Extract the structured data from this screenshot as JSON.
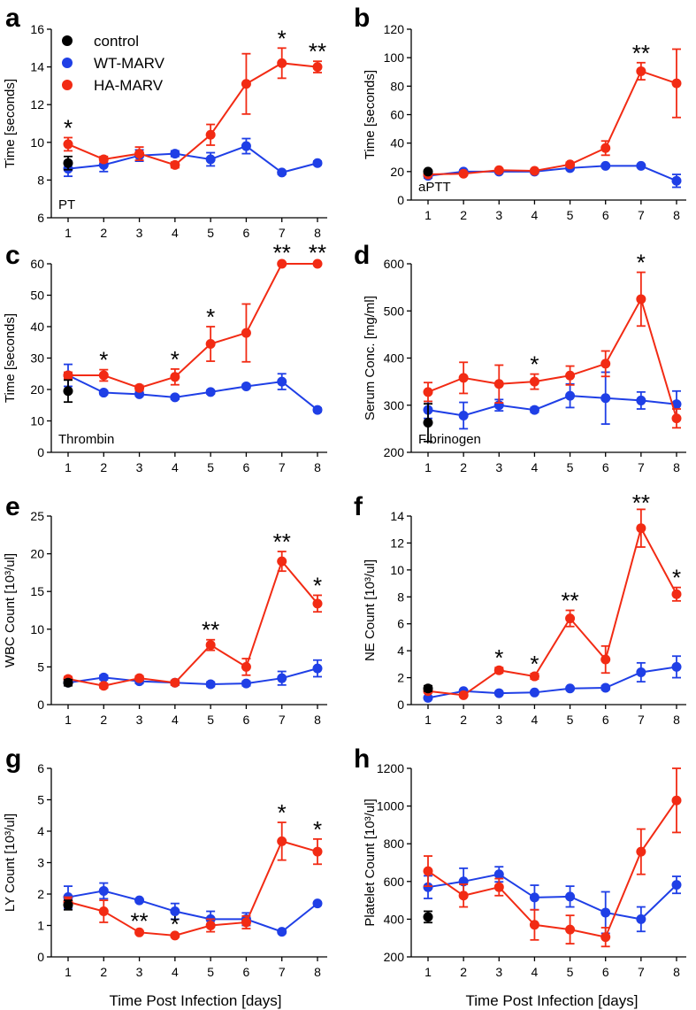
{
  "figure": {
    "xlabel_left": "Time Post Infection [days]",
    "xlabel_right": "Time Post Infection [days]"
  },
  "colors": {
    "control": "#000000",
    "wt": "#1f3fe6",
    "ha": "#f22b14"
  },
  "legend": {
    "control": "control",
    "wt": "WT-MARV",
    "ha": "HA-MARV"
  },
  "chart_data": [
    {
      "letter": "a",
      "type": "line",
      "ylabel": "Time [seconds]",
      "tag": "PT",
      "x": [
        1,
        2,
        3,
        4,
        5,
        6,
        7,
        8
      ],
      "ylim": [
        6,
        16
      ],
      "yticks": [
        6,
        8,
        10,
        12,
        14,
        16
      ],
      "control": {
        "value": 8.9,
        "err": 0.35
      },
      "series": [
        {
          "name": "WT-MARV",
          "values": [
            8.6,
            8.8,
            9.3,
            9.4,
            9.1,
            9.8,
            8.4,
            8.9
          ],
          "err": [
            0.4,
            0.35,
            0.3,
            0.15,
            0.35,
            0.4,
            0.1,
            0.1
          ]
        },
        {
          "name": "HA-MARV",
          "values": [
            9.9,
            9.1,
            9.4,
            8.8,
            10.4,
            13.1,
            14.2,
            14.0
          ],
          "err": [
            0.35,
            0.15,
            0.35,
            0.15,
            0.55,
            1.6,
            0.8,
            0.3
          ]
        }
      ],
      "annotations": [
        {
          "day": 1,
          "text": "*"
        },
        {
          "day": 7,
          "text": "*"
        },
        {
          "day": 8,
          "text": "**"
        }
      ]
    },
    {
      "letter": "b",
      "type": "line",
      "ylabel": "Time [seconds]",
      "tag": "aPTT",
      "x": [
        1,
        2,
        3,
        4,
        5,
        6,
        7,
        8
      ],
      "ylim": [
        0,
        120
      ],
      "yticks": [
        0,
        20,
        40,
        60,
        80,
        100,
        120
      ],
      "control": {
        "value": 20,
        "err": 1
      },
      "series": [
        {
          "name": "WT-MARV",
          "values": [
            17,
            20,
            20,
            20,
            22.5,
            24,
            24,
            13.5
          ],
          "err": [
            1.5,
            1,
            1,
            1,
            1,
            1,
            1,
            4.5
          ]
        },
        {
          "name": "HA-MARV",
          "values": [
            18,
            18.5,
            21,
            20.5,
            25,
            36.5,
            90.5,
            82
          ],
          "err": [
            1,
            1,
            1,
            1,
            1.5,
            5,
            6,
            24
          ]
        }
      ],
      "annotations": [
        {
          "day": 7,
          "text": "**"
        }
      ]
    },
    {
      "letter": "c",
      "type": "line",
      "ylabel": "Time [seconds]",
      "tag": "Thrombin",
      "x": [
        1,
        2,
        3,
        4,
        5,
        6,
        7,
        8
      ],
      "ylim": [
        0,
        60
      ],
      "yticks": [
        0,
        10,
        20,
        30,
        40,
        50,
        60
      ],
      "control": {
        "value": 19.5,
        "err": 3.5
      },
      "series": [
        {
          "name": "WT-MARV",
          "values": [
            24.5,
            19,
            18.5,
            17.5,
            19.2,
            21,
            22.5,
            13.5
          ],
          "err": [
            3.5,
            0.6,
            0.6,
            0.6,
            0.6,
            0.6,
            2.5,
            0.6
          ]
        },
        {
          "name": "HA-MARV",
          "values": [
            24.5,
            24.5,
            20.5,
            24,
            34.5,
            38,
            60,
            60
          ],
          "err": [
            1,
            1.8,
            0.8,
            2.5,
            5.5,
            9.2,
            0.4,
            0.4
          ]
        }
      ],
      "annotations": [
        {
          "day": 2,
          "text": "*"
        },
        {
          "day": 4,
          "text": "*"
        },
        {
          "day": 5,
          "text": "*"
        },
        {
          "day": 7,
          "text": "**"
        },
        {
          "day": 8,
          "text": "**"
        }
      ]
    },
    {
      "letter": "d",
      "type": "line",
      "ylabel": "Serum Conc. [mg/ml]",
      "tag": "Fibrinogen",
      "x": [
        1,
        2,
        3,
        4,
        5,
        6,
        7,
        8
      ],
      "ylim": [
        200,
        600
      ],
      "yticks": [
        200,
        300,
        400,
        500,
        600
      ],
      "control": {
        "value": 263,
        "err": 40
      },
      "series": [
        {
          "name": "WT-MARV",
          "values": [
            290,
            278,
            300,
            290,
            320,
            315,
            310,
            302
          ],
          "err": [
            18,
            28,
            12,
            5,
            25,
            55,
            18,
            28
          ]
        },
        {
          "name": "HA-MARV",
          "values": [
            328,
            358,
            345,
            350,
            363,
            388,
            525,
            272
          ],
          "err": [
            20,
            33,
            40,
            16,
            20,
            27,
            57,
            20
          ]
        }
      ],
      "annotations": [
        {
          "day": 4,
          "text": "*"
        },
        {
          "day": 7,
          "text": "*"
        }
      ]
    },
    {
      "letter": "e",
      "type": "line",
      "ylabel": "WBC Count [10³/ul]",
      "x": [
        1,
        2,
        3,
        4,
        5,
        6,
        7,
        8
      ],
      "ylim": [
        0,
        25
      ],
      "yticks": [
        0,
        5,
        10,
        15,
        20,
        25
      ],
      "control": {
        "value": 2.9,
        "err": 0.4
      },
      "series": [
        {
          "name": "WT-MARV",
          "values": [
            2.9,
            3.6,
            3.1,
            2.9,
            2.7,
            2.8,
            3.5,
            4.8
          ],
          "err": [
            0.3,
            0.3,
            0.3,
            0.3,
            0.3,
            0.3,
            0.9,
            1.1
          ]
        },
        {
          "name": "HA-MARV",
          "values": [
            3.4,
            2.5,
            3.5,
            2.9,
            7.9,
            5.0,
            19.0,
            13.4
          ],
          "err": [
            0.3,
            0.3,
            0.3,
            0.3,
            0.7,
            1.1,
            1.3,
            1.1
          ]
        }
      ],
      "annotations": [
        {
          "day": 5,
          "text": "**"
        },
        {
          "day": 7,
          "text": "**"
        },
        {
          "day": 8,
          "text": "*"
        }
      ]
    },
    {
      "letter": "f",
      "type": "line",
      "ylabel": "NE Count [10³/ul]",
      "x": [
        1,
        2,
        3,
        4,
        5,
        6,
        7,
        8
      ],
      "ylim": [
        0,
        14
      ],
      "yticks": [
        0,
        2,
        4,
        6,
        8,
        10,
        12,
        14
      ],
      "control": {
        "value": 1.2,
        "err": 0.2
      },
      "series": [
        {
          "name": "WT-MARV",
          "values": [
            0.5,
            1.0,
            0.85,
            0.9,
            1.2,
            1.25,
            2.4,
            2.8
          ],
          "err": [
            0.1,
            0.1,
            0.1,
            0.1,
            0.1,
            0.15,
            0.7,
            0.8
          ]
        },
        {
          "name": "HA-MARV",
          "values": [
            1.0,
            0.7,
            2.55,
            2.1,
            6.4,
            3.35,
            13.1,
            8.2
          ],
          "err": [
            0.1,
            0.1,
            0.2,
            0.2,
            0.6,
            1.0,
            1.4,
            0.5
          ]
        }
      ],
      "annotations": [
        {
          "day": 3,
          "text": "*"
        },
        {
          "day": 4,
          "text": "*"
        },
        {
          "day": 5,
          "text": "**"
        },
        {
          "day": 7,
          "text": "**"
        },
        {
          "day": 8,
          "text": "*"
        }
      ]
    },
    {
      "letter": "g",
      "type": "line",
      "ylabel": "LY Count [10³/ul]",
      "x": [
        1,
        2,
        3,
        4,
        5,
        6,
        7,
        8
      ],
      "ylim": [
        0,
        6
      ],
      "yticks": [
        0,
        1,
        2,
        3,
        4,
        5,
        6
      ],
      "control": {
        "value": 1.65,
        "err": 0.15
      },
      "series": [
        {
          "name": "WT-MARV",
          "values": [
            1.9,
            2.1,
            1.8,
            1.45,
            1.2,
            1.2,
            0.8,
            1.7
          ],
          "err": [
            0.35,
            0.25,
            0.05,
            0.25,
            0.25,
            0.2,
            0.05,
            0.05
          ]
        },
        {
          "name": "HA-MARV",
          "values": [
            1.75,
            1.45,
            0.78,
            0.68,
            1.0,
            1.1,
            3.68,
            3.35
          ],
          "err": [
            0.15,
            0.35,
            0.05,
            0.05,
            0.2,
            0.2,
            0.6,
            0.4
          ]
        }
      ],
      "annotations": [
        {
          "day": 3,
          "text": "**"
        },
        {
          "day": 4,
          "text": "*"
        },
        {
          "day": 7,
          "text": "*"
        },
        {
          "day": 8,
          "text": "*"
        }
      ]
    },
    {
      "letter": "h",
      "type": "line",
      "ylabel": "Platelet Count [10³/ul]",
      "x": [
        1,
        2,
        3,
        4,
        5,
        6,
        7,
        8
      ],
      "ylim": [
        200,
        1200
      ],
      "yticks": [
        200,
        400,
        600,
        800,
        1000,
        1200
      ],
      "control": {
        "value": 412,
        "err": 30
      },
      "series": [
        {
          "name": "WT-MARV",
          "values": [
            570,
            600,
            638,
            515,
            520,
            435,
            400,
            582
          ],
          "err": [
            60,
            70,
            40,
            65,
            55,
            110,
            65,
            45
          ]
        },
        {
          "name": "HA-MARV",
          "values": [
            655,
            525,
            570,
            370,
            345,
            305,
            758,
            1030
          ],
          "err": [
            80,
            60,
            45,
            80,
            75,
            50,
            120,
            170
          ]
        }
      ],
      "annotations": []
    }
  ]
}
